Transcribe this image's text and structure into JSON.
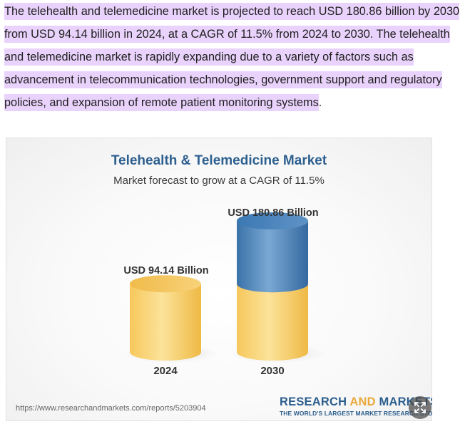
{
  "paragraph": {
    "text": "The telehealth and telemedicine market is projected to reach USD 180.86 billion by 2030 from USD 94.14 billion in 2024, at a CAGR of 11.5% from 2024 to 2030. The telehealth and telemedicine market is rapidly expanding due to a variety of factors such as advancement in telecommunication technologies, government support and regulatory policies, and expansion of remote patient monitoring systems",
    "end": "."
  },
  "chart_data": {
    "type": "bar",
    "title": "Telehealth & Telemedicine Market",
    "subtitle": "Market forecast to grow at a CAGR of 11.5%",
    "categories": [
      "2024",
      "2030"
    ],
    "values": [
      94.14,
      180.86
    ],
    "value_labels": [
      "USD 94.14 Billion",
      "USD 180.86 Billion"
    ],
    "colors": {
      "base": "#f3c45a",
      "growth": "#3f79b0"
    }
  },
  "source": {
    "url": "https://www.researchandmarkets.com/reports/5203904"
  },
  "brand": {
    "name_part1": "RESEARCH ",
    "name_part2": "AND",
    "name_part3": " MARKETS",
    "tagline": "THE WORLD'S LARGEST MARKET RESEARCH STORE"
  },
  "controls": {
    "expand_icon": "expand-icon"
  }
}
